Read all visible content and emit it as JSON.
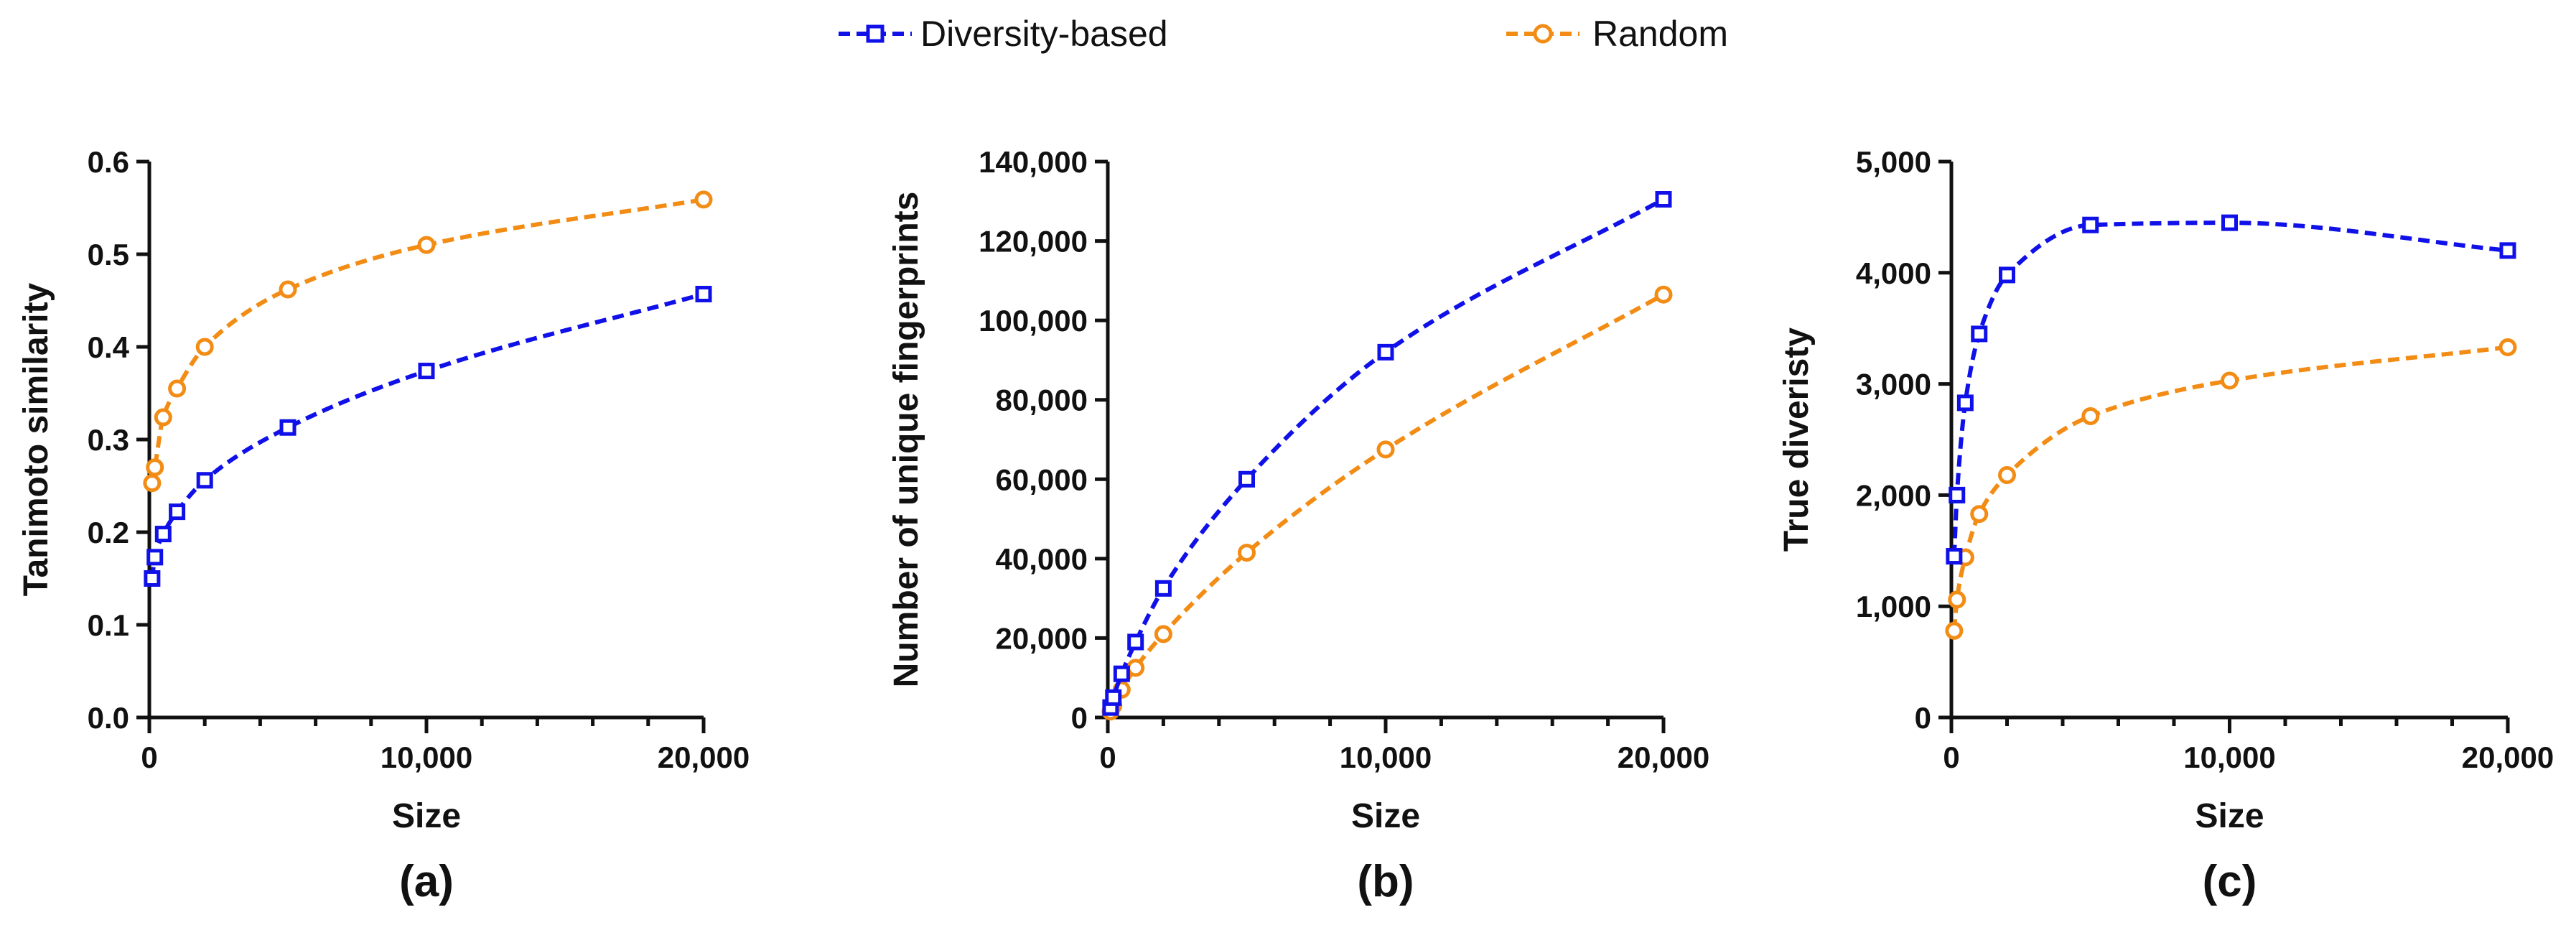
{
  "legend": {
    "position": "top-center",
    "entries": [
      {
        "name": "Diversity-based",
        "color": "#1010E8",
        "marker": "square-open"
      },
      {
        "name": "Random",
        "color": "#F28C14",
        "marker": "circle-open"
      }
    ]
  },
  "chart_data": [
    {
      "type": "line",
      "panel_label": "(a)",
      "xlabel": "Size",
      "ylabel": "Tanimoto similarity",
      "xlim": [
        0,
        20000
      ],
      "ylim": [
        0,
        0.6
      ],
      "xticks": [
        0,
        10000,
        20000
      ],
      "xtick_labels": [
        "0",
        "10,000",
        "20,000"
      ],
      "x_minor_step": 2000,
      "yticks": [
        0,
        0.1,
        0.2,
        0.3,
        0.4,
        0.5,
        0.6
      ],
      "ytick_labels": [
        "0.0",
        "0.1",
        "0.2",
        "0.3",
        "0.4",
        "0.5",
        "0.6"
      ],
      "grid": false,
      "series": [
        {
          "name": "Diversity-based",
          "x": [
            100,
            200,
            500,
            1000,
            2000,
            5000,
            10000,
            20000
          ],
          "y": [
            0.15,
            0.173,
            0.198,
            0.222,
            0.256,
            0.313,
            0.374,
            0.457
          ]
        },
        {
          "name": "Random",
          "x": [
            100,
            200,
            500,
            1000,
            2000,
            5000,
            10000,
            20000
          ],
          "y": [
            0.253,
            0.27,
            0.324,
            0.355,
            0.4,
            0.462,
            0.51,
            0.559
          ]
        }
      ]
    },
    {
      "type": "line",
      "panel_label": "(b)",
      "xlabel": "Size",
      "ylabel": "Number of unique fingerprints",
      "xlim": [
        0,
        20000
      ],
      "ylim": [
        0,
        140000
      ],
      "xticks": [
        0,
        10000,
        20000
      ],
      "xtick_labels": [
        "0",
        "10,000",
        "20,000"
      ],
      "x_minor_step": 2000,
      "yticks": [
        0,
        20000,
        40000,
        60000,
        80000,
        100000,
        120000,
        140000
      ],
      "ytick_labels": [
        "0",
        "20,000",
        "40,000",
        "60,000",
        "80,000",
        "100,000",
        "120,000",
        "140,000"
      ],
      "grid": false,
      "series": [
        {
          "name": "Diversity-based",
          "x": [
            100,
            200,
            500,
            1000,
            2000,
            5000,
            10000,
            20000
          ],
          "y": [
            2500,
            5000,
            11000,
            19000,
            32500,
            60000,
            92000,
            130500
          ]
        },
        {
          "name": "Random",
          "x": [
            100,
            200,
            500,
            1000,
            2000,
            5000,
            10000,
            20000
          ],
          "y": [
            1500,
            3000,
            7000,
            12500,
            21000,
            41500,
            67500,
            106500
          ]
        }
      ]
    },
    {
      "type": "line",
      "panel_label": "(c)",
      "xlabel": "Size",
      "ylabel": "True diveristy",
      "xlim": [
        0,
        20000
      ],
      "ylim": [
        0,
        5000
      ],
      "xticks": [
        0,
        10000,
        20000
      ],
      "xtick_labels": [
        "0",
        "10,000",
        "20,000"
      ],
      "x_minor_step": 2000,
      "yticks": [
        0,
        1000,
        2000,
        3000,
        4000,
        5000
      ],
      "ytick_labels": [
        "0",
        "1,000",
        "2,000",
        "3,000",
        "4,000",
        "5,000"
      ],
      "grid": false,
      "series": [
        {
          "name": "Diversity-based",
          "x": [
            100,
            200,
            500,
            1000,
            2000,
            5000,
            10000,
            20000
          ],
          "y": [
            1450,
            2000,
            2830,
            3450,
            3980,
            4430,
            4450,
            4200
          ]
        },
        {
          "name": "Random",
          "x": [
            100,
            200,
            500,
            1000,
            2000,
            5000,
            10000,
            20000
          ],
          "y": [
            780,
            1060,
            1440,
            1830,
            2180,
            2710,
            3030,
            3330
          ]
        }
      ]
    }
  ]
}
